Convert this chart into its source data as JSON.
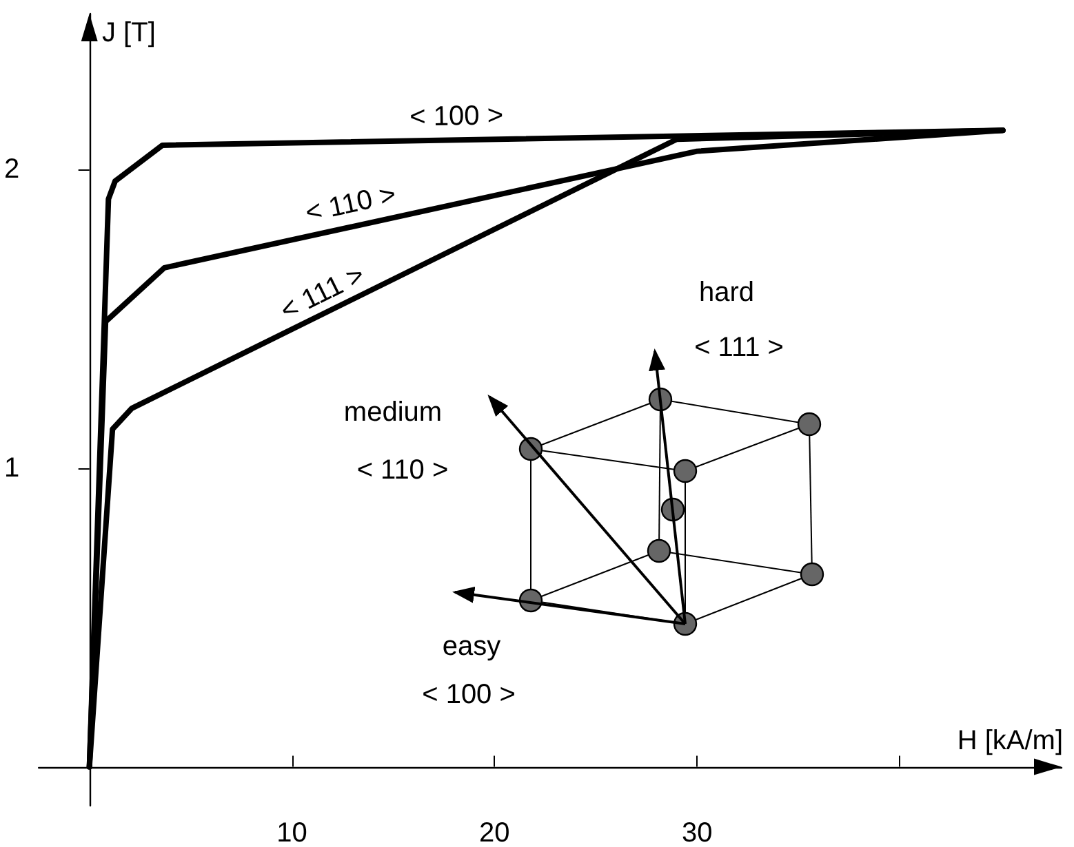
{
  "chart_data": {
    "type": "line",
    "xlabel": "H [kA/m]",
    "ylabel": "J [T]",
    "xlim": [
      -2.5,
      48
    ],
    "ylim": [
      -0.13,
      2.52
    ],
    "xticks": [
      10,
      20,
      30,
      {
        "value": 40,
        "label": null
      }
    ],
    "yticks": [
      1,
      2
    ],
    "grid": false,
    "marker": "none",
    "line_style": "solid",
    "series": [
      {
        "name": "< 100 >",
        "color": "#000000",
        "x": [
          0,
          0.94,
          1.27,
          3.6,
          45.1
        ],
        "values": [
          0,
          1.9,
          1.96,
          2.08,
          2.13
        ]
      },
      {
        "name": "< 110 >",
        "color": "#000000",
        "x": [
          0,
          0.8,
          3.7,
          30,
          45.1
        ],
        "values": [
          0,
          1.49,
          1.67,
          2.06,
          2.13
        ]
      },
      {
        "name": "< 111 >",
        "color": "#000000",
        "x": [
          0,
          1.14,
          2.1,
          29,
          45.1
        ],
        "values": [
          0,
          1.13,
          1.2,
          2.1,
          2.13
        ]
      }
    ],
    "annotations": [
      "hard",
      "< 111 >",
      "medium",
      "< 110 >",
      "easy",
      "< 100 >"
    ]
  }
}
